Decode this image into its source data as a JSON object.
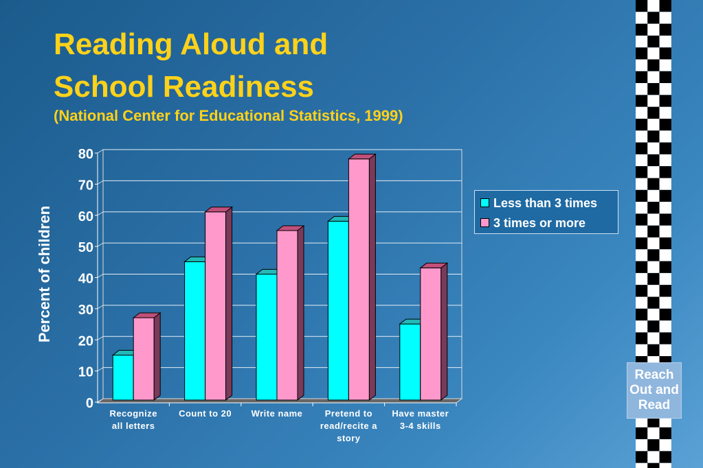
{
  "slide": {
    "title_line1": "Reading Aloud and",
    "title_line2": "School Readiness",
    "subtitle": "(National Center for Educational Statistics, 1999)"
  },
  "logo": {
    "line1": "Reach",
    "line2": "Out and",
    "line3": "Read"
  },
  "colors": {
    "background": "#2a6fa6",
    "title": "#ffd21a",
    "series1": "#00ffff",
    "series2": "#ff99cc"
  },
  "chart_data": {
    "type": "bar",
    "title": "",
    "xlabel": "",
    "ylabel": "Percent of children",
    "ylim": [
      0,
      80
    ],
    "yticks": [
      0,
      10,
      20,
      30,
      40,
      50,
      60,
      70,
      80
    ],
    "grid": true,
    "legend_position": "right",
    "categories": [
      [
        "Recognize",
        "all letters"
      ],
      [
        "Count to 20"
      ],
      [
        "Write name"
      ],
      [
        "Pretend to",
        "read/recite a",
        "story"
      ],
      [
        "Have master",
        "3-4 skills"
      ]
    ],
    "series": [
      {
        "name": "Less than 3 times",
        "values": [
          14,
          44,
          40,
          57,
          24
        ]
      },
      {
        "name": "3 times or more",
        "values": [
          26,
          60,
          54,
          77,
          42
        ]
      }
    ]
  }
}
